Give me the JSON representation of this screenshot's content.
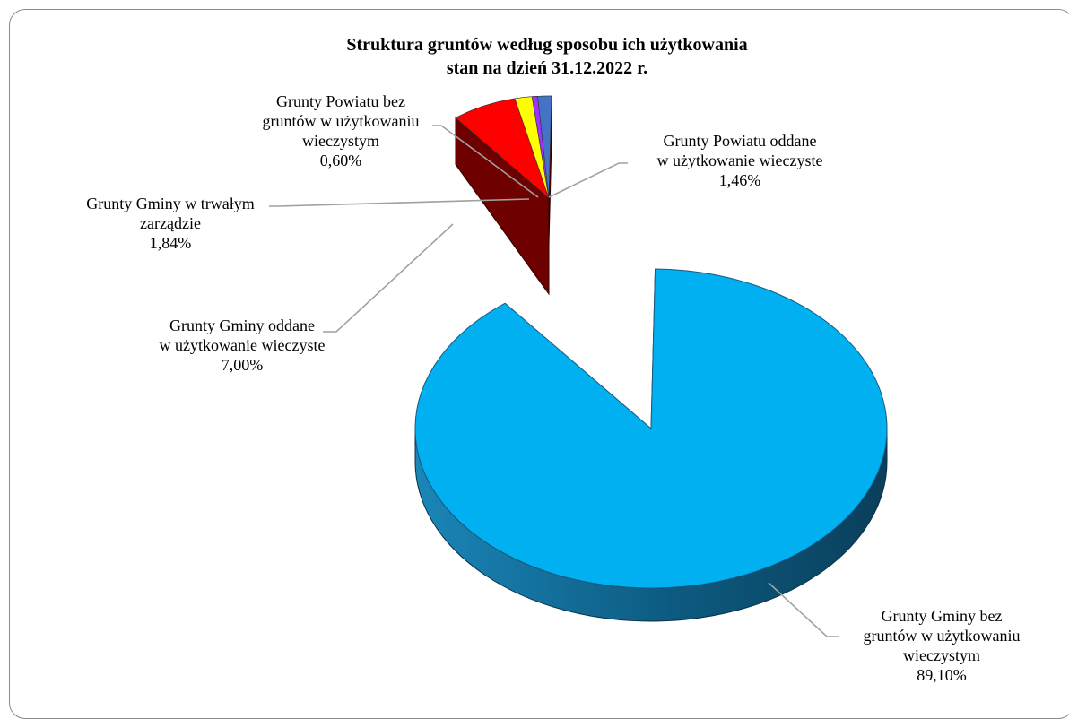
{
  "chart_data": {
    "type": "pie",
    "title": "Struktura gruntów według sposobu ich użytkowania",
    "subtitle": "stan na dzień 31.12.2022 r.",
    "slices": [
      {
        "line1": "Grunty Gminy bez",
        "line2": "gruntów w użytkowaniu",
        "line3": "wieczystym",
        "value_label": "89,10%",
        "value": 89.1,
        "color": "#00b0f0",
        "side": "#0f5878"
      },
      {
        "line1": "Grunty Gminy oddane",
        "line2": "w użytkowanie wieczyste",
        "line3": "",
        "value_label": "7,00%",
        "value": 7.0,
        "color": "#ff0000",
        "side": "#6e0000"
      },
      {
        "line1": "Grunty Gminy w trwałym",
        "line2": "zarządzie",
        "line3": "",
        "value_label": "1,84%",
        "value": 1.84,
        "color": "#ffff00",
        "side": "#6e6e00"
      },
      {
        "line1": "Grunty Powiatu bez",
        "line2": "gruntów w użytkowaniu",
        "line3": "wieczystym",
        "value_label": "0,60%",
        "value": 0.6,
        "color": "#9933ff",
        "side": "#3e145e"
      },
      {
        "line1": "Grunty Powiatu oddane",
        "line2": "w użytkowanie wieczyste",
        "line3": "",
        "value_label": "1,46%",
        "value": 1.46,
        "color": "#4472c4",
        "side": "#1f3460"
      }
    ]
  }
}
